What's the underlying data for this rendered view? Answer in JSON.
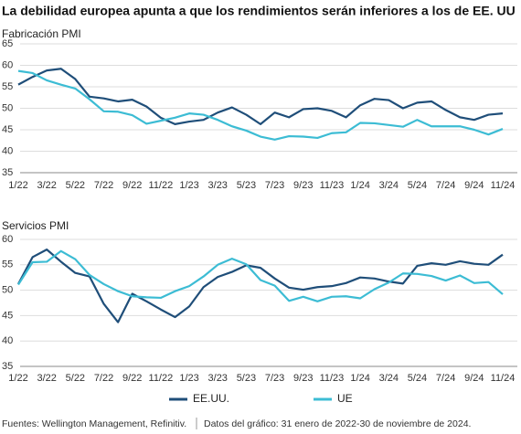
{
  "title": "La debilidad europea apunta a que los rendimientos serán inferiores a los de EE. UU",
  "source": "Fuentes: Wellington Management, Refinitiv.",
  "data_note": "Datos del gráfico: 31 enero de 2022-30 de noviembre de 2024.",
  "chart_data": [
    {
      "type": "line",
      "title": "Fabricación PMI",
      "categories": [
        "1/22",
        null,
        "3/22",
        null,
        "5/22",
        null,
        "7/22",
        null,
        "9/22",
        null,
        "11/22",
        null,
        "1/23",
        null,
        "3/23",
        null,
        "5/23",
        null,
        "7/23",
        null,
        "9/23",
        null,
        "11/23",
        null,
        "1/24",
        null,
        "3/24",
        null,
        "5/24",
        null,
        "7/24",
        null,
        "9/24",
        null,
        "11/24"
      ],
      "series": [
        {
          "name": "EE.UU.",
          "color": "#1f4e79",
          "values": [
            55.5,
            57.3,
            58.8,
            59.2,
            56.8,
            52.7,
            52.3,
            51.6,
            52.0,
            50.4,
            47.8,
            46.3,
            46.9,
            47.3,
            49.0,
            50.2,
            48.5,
            46.3,
            49.0,
            47.9,
            49.8,
            50.0,
            49.4,
            47.9,
            50.7,
            52.2,
            51.9,
            50.0,
            51.3,
            51.6,
            49.6,
            47.9,
            47.3,
            48.5,
            48.8
          ]
        },
        {
          "name": "UE",
          "color": "#3cbcd4",
          "values": [
            58.7,
            58.2,
            56.5,
            55.5,
            54.6,
            52.1,
            49.3,
            49.2,
            48.4,
            46.4,
            47.1,
            47.8,
            48.8,
            48.5,
            47.3,
            45.8,
            44.8,
            43.4,
            42.7,
            43.5,
            43.4,
            43.1,
            44.2,
            44.4,
            46.6,
            46.5,
            46.1,
            45.7,
            47.3,
            45.8,
            45.8,
            45.8,
            45.0,
            43.9,
            45.2
          ]
        }
      ],
      "ylim": [
        35,
        65
      ],
      "yticks": [
        35,
        40,
        45,
        50,
        55,
        60,
        65
      ],
      "grid": true
    },
    {
      "type": "line",
      "title": "Servicios PMI",
      "categories": [
        "1/22",
        null,
        "3/22",
        null,
        "5/22",
        null,
        "7/22",
        null,
        "9/22",
        null,
        "11/22",
        null,
        "1/23",
        null,
        "3/23",
        null,
        "5/23",
        null,
        "7/23",
        null,
        "9/23",
        null,
        "11/23",
        null,
        "1/24",
        null,
        "3/24",
        null,
        "5/24",
        null,
        "7/24",
        null,
        "9/24",
        null,
        "11/24"
      ],
      "series": [
        {
          "name": "EE.UU.",
          "color": "#1f4e79",
          "values": [
            51.2,
            56.5,
            58.0,
            55.6,
            53.4,
            52.7,
            47.3,
            43.7,
            49.3,
            47.8,
            46.2,
            44.7,
            46.8,
            50.6,
            52.6,
            53.6,
            54.9,
            54.4,
            52.3,
            50.5,
            50.1,
            50.6,
            50.8,
            51.4,
            52.5,
            52.3,
            51.7,
            51.3,
            54.8,
            55.3,
            55.0,
            55.7,
            55.2,
            55.0,
            57.0
          ]
        },
        {
          "name": "UE",
          "color": "#3cbcd4",
          "values": [
            51.1,
            55.5,
            55.6,
            57.7,
            56.1,
            53.0,
            51.2,
            49.8,
            48.8,
            48.6,
            48.5,
            49.8,
            50.8,
            52.7,
            55.0,
            56.2,
            55.1,
            52.0,
            50.9,
            47.9,
            48.7,
            47.8,
            48.7,
            48.8,
            48.4,
            50.2,
            51.5,
            53.3,
            53.2,
            52.8,
            51.9,
            52.9,
            51.4,
            51.6,
            49.2
          ]
        }
      ],
      "ylim": [
        35,
        60
      ],
      "yticks": [
        35,
        40,
        45,
        50,
        55,
        60
      ],
      "grid": true
    }
  ]
}
